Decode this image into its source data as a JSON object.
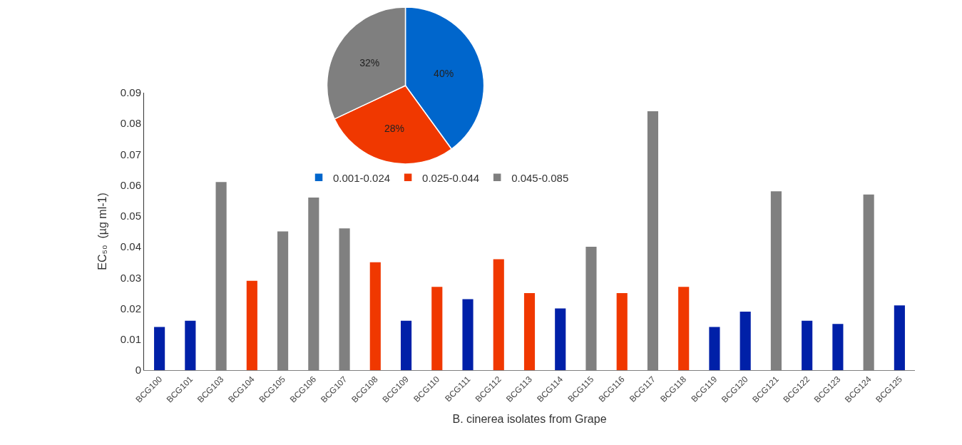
{
  "chart_data": [
    {
      "type": "bar",
      "xlabel": "B. cinerea isolates from Grape",
      "ylabel": "EC₅₀  (µg ml-1)",
      "categories": [
        "BCG100",
        "BCG101",
        "BCG103",
        "BCG104",
        "BCG105",
        "BCG106",
        "BCG107",
        "BCG108",
        "BCG109",
        "BCG110",
        "BCG111",
        "BCG112",
        "BCG113",
        "BCG114",
        "BCG115",
        "BCG116",
        "BCG117",
        "BCG118",
        "BCG119",
        "BCG120",
        "BCG121",
        "BCG122",
        "BCG123",
        "BCG124",
        "BCG125"
      ],
      "values": [
        0.014,
        0.016,
        0.061,
        0.029,
        0.045,
        0.056,
        0.046,
        0.035,
        0.016,
        0.027,
        0.023,
        0.036,
        0.025,
        0.02,
        0.04,
        0.025,
        0.084,
        0.027,
        0.014,
        0.019,
        0.058,
        0.016,
        0.015,
        0.057,
        0.021
      ],
      "colors": [
        "#0020a8",
        "#0020a8",
        "#808080",
        "#f03800",
        "#808080",
        "#808080",
        "#808080",
        "#f03800",
        "#0020a8",
        "#f03800",
        "#0020a8",
        "#f03800",
        "#f03800",
        "#0020a8",
        "#808080",
        "#f03800",
        "#808080",
        "#f03800",
        "#0020a8",
        "#0020a8",
        "#808080",
        "#0020a8",
        "#0020a8",
        "#808080",
        "#0020a8"
      ],
      "ylim": [
        0,
        0.09
      ],
      "yticks": [
        0,
        0.01,
        0.02,
        0.03,
        0.04,
        0.05,
        0.06,
        0.07,
        0.08,
        0.09
      ]
    },
    {
      "type": "pie",
      "categories": [
        "0.001-0.024",
        "0.025-0.044",
        "0.045-0.085"
      ],
      "values": [
        40,
        28,
        32
      ],
      "colors": [
        "#0066cc",
        "#f03800",
        "#7f7f7f"
      ],
      "value_labels": [
        "40%",
        "28%",
        "32%"
      ],
      "legend": "bottom"
    }
  ]
}
